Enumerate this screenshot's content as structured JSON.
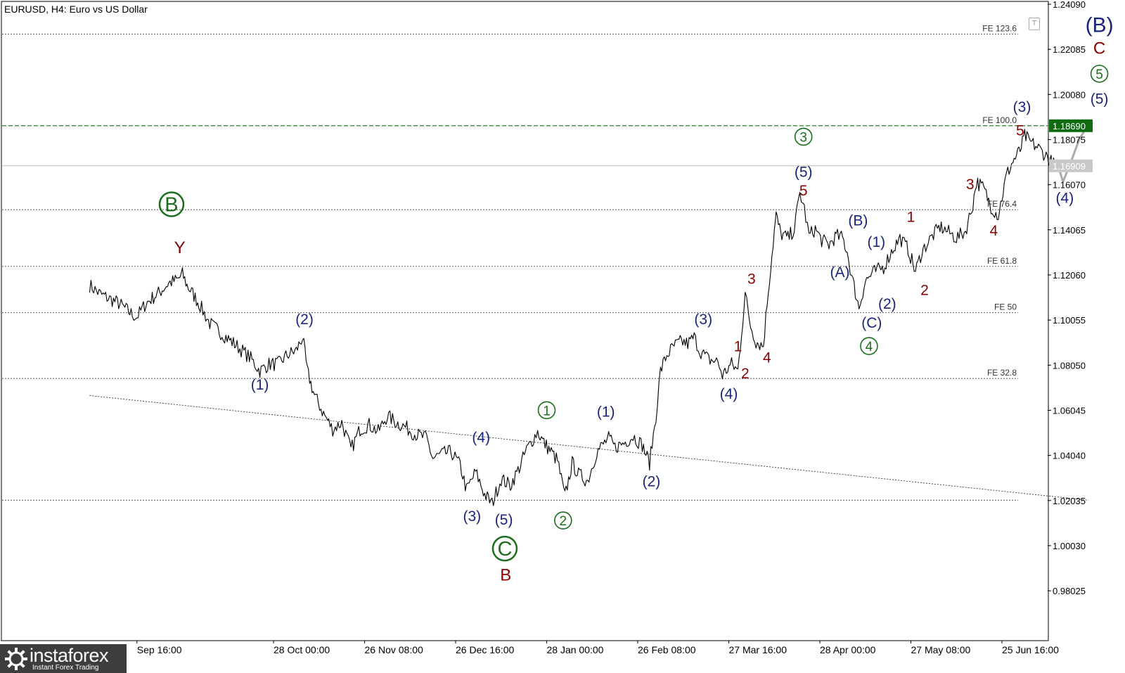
{
  "title": "EURUSD, H4:  Euro vs US Dollar",
  "tool_button": "T",
  "logo": {
    "name": "instaforex",
    "tagline": "Instant Forex Trading"
  },
  "colors": {
    "navy": "#1a237e",
    "maroon": "#8b0000",
    "green": "#1b6e1b",
    "dark_green": "#006400",
    "grey": "#aaaaaa"
  },
  "chart_data": {
    "type": "line",
    "symbol": "EURUSD",
    "timeframe": "H4",
    "ylim": [
      0.97,
      1.2409
    ],
    "y_ticks": [
      "1.24090",
      "1.22085",
      "1.20080",
      "1.18075",
      "1.16070",
      "1.14065",
      "1.12060",
      "1.10055",
      "1.08050",
      "1.06045",
      "1.04040",
      "1.02035",
      "1.00030",
      "0.98025"
    ],
    "x_ticks": [
      {
        "t": 0.5,
        "label": "Sep 16:00"
      },
      {
        "t": 2,
        "label": "28 Oct 00:00"
      },
      {
        "t": 3,
        "label": "26 Nov 08:00"
      },
      {
        "t": 4,
        "label": "26 Dec 16:00"
      },
      {
        "t": 5,
        "label": "28 Jan 00:00"
      },
      {
        "t": 6,
        "label": "26 Feb 08:00"
      },
      {
        "t": 7,
        "label": "27 Mar 16:00"
      },
      {
        "t": 8,
        "label": "28 Apr 00:00"
      },
      {
        "t": 9,
        "label": "27 May 08:00"
      },
      {
        "t": 10,
        "label": "25 Jun 16:00"
      }
    ],
    "price_path": [
      [
        -0.02,
        1.116
      ],
      [
        0.1,
        1.112
      ],
      [
        0.3,
        1.108
      ],
      [
        0.45,
        1.103
      ],
      [
        0.5,
        1.102
      ],
      [
        0.6,
        1.108
      ],
      [
        0.75,
        1.113
      ],
      [
        0.85,
        1.117
      ],
      [
        0.95,
        1.1185
      ],
      [
        1.0,
        1.121
      ],
      [
        1.05,
        1.116
      ],
      [
        1.1,
        1.113
      ],
      [
        1.18,
        1.108
      ],
      [
        1.3,
        1.099
      ],
      [
        1.45,
        1.094
      ],
      [
        1.6,
        1.089
      ],
      [
        1.75,
        1.0835
      ],
      [
        1.85,
        1.078
      ],
      [
        1.95,
        1.081
      ],
      [
        2.05,
        1.081
      ],
      [
        2.15,
        1.085
      ],
      [
        2.25,
        1.087
      ],
      [
        2.32,
        1.093
      ],
      [
        2.37,
        1.078
      ],
      [
        2.45,
        1.067
      ],
      [
        2.55,
        1.059
      ],
      [
        2.65,
        1.052
      ],
      [
        2.75,
        1.055
      ],
      [
        2.85,
        1.043
      ],
      [
        2.95,
        1.052
      ],
      [
        3.05,
        1.054
      ],
      [
        3.15,
        1.051
      ],
      [
        3.25,
        1.058
      ],
      [
        3.35,
        1.055
      ],
      [
        3.45,
        1.053
      ],
      [
        3.55,
        1.05
      ],
      [
        3.68,
        1.048
      ],
      [
        3.75,
        1.039
      ],
      [
        3.85,
        1.041
      ],
      [
        3.95,
        1.042
      ],
      [
        4.05,
        1.036
      ],
      [
        4.12,
        1.025
      ],
      [
        4.22,
        1.033
      ],
      [
        4.32,
        1.023
      ],
      [
        4.4,
        1.019
      ],
      [
        4.5,
        1.03
      ],
      [
        4.6,
        1.027
      ],
      [
        4.7,
        1.035
      ],
      [
        4.78,
        1.043
      ],
      [
        4.9,
        1.051
      ],
      [
        4.97,
        1.046
      ],
      [
        5.05,
        1.042
      ],
      [
        5.12,
        1.038
      ],
      [
        5.2,
        1.022
      ],
      [
        5.28,
        1.037
      ],
      [
        5.35,
        1.032
      ],
      [
        5.45,
        1.029
      ],
      [
        5.55,
        1.042
      ],
      [
        5.68,
        1.048
      ],
      [
        5.75,
        1.044
      ],
      [
        5.85,
        1.046
      ],
      [
        5.95,
        1.049
      ],
      [
        6.05,
        1.045
      ],
      [
        6.13,
        1.037
      ],
      [
        6.2,
        1.058
      ],
      [
        6.25,
        1.078
      ],
      [
        6.32,
        1.085
      ],
      [
        6.4,
        1.089
      ],
      [
        6.48,
        1.091
      ],
      [
        6.55,
        1.09
      ],
      [
        6.62,
        1.093
      ],
      [
        6.68,
        1.087
      ],
      [
        6.78,
        1.083
      ],
      [
        6.88,
        1.082
      ],
      [
        6.93,
        1.076
      ],
      [
        7.03,
        1.081
      ],
      [
        7.1,
        1.078
      ],
      [
        7.18,
        1.112
      ],
      [
        7.24,
        1.098
      ],
      [
        7.3,
        1.091
      ],
      [
        7.38,
        1.089
      ],
      [
        7.42,
        1.108
      ],
      [
        7.5,
        1.14
      ],
      [
        7.52,
        1.147
      ],
      [
        7.57,
        1.139
      ],
      [
        7.65,
        1.137
      ],
      [
        7.72,
        1.141
      ],
      [
        7.78,
        1.157
      ],
      [
        7.83,
        1.15
      ],
      [
        7.88,
        1.138
      ],
      [
        7.95,
        1.141
      ],
      [
        8.02,
        1.136
      ],
      [
        8.1,
        1.134
      ],
      [
        8.18,
        1.138
      ],
      [
        8.25,
        1.137
      ],
      [
        8.3,
        1.131
      ],
      [
        8.35,
        1.12
      ],
      [
        8.43,
        1.106
      ],
      [
        8.5,
        1.118
      ],
      [
        8.6,
        1.122
      ],
      [
        8.7,
        1.124
      ],
      [
        8.8,
        1.132
      ],
      [
        8.88,
        1.137
      ],
      [
        8.97,
        1.132
      ],
      [
        9.05,
        1.122
      ],
      [
        9.12,
        1.131
      ],
      [
        9.22,
        1.137
      ],
      [
        9.32,
        1.142
      ],
      [
        9.4,
        1.14
      ],
      [
        9.5,
        1.137
      ],
      [
        9.6,
        1.14
      ],
      [
        9.68,
        1.152
      ],
      [
        9.72,
        1.162
      ],
      [
        9.8,
        1.159
      ],
      [
        9.88,
        1.151
      ],
      [
        9.96,
        1.147
      ],
      [
        10.0,
        1.155
      ],
      [
        10.05,
        1.165
      ],
      [
        10.12,
        1.171
      ],
      [
        10.2,
        1.176
      ],
      [
        10.25,
        1.1825
      ],
      [
        10.3,
        1.18
      ],
      [
        10.4,
        1.177
      ],
      [
        10.5,
        1.173
      ],
      [
        10.58,
        1.169
      ],
      [
        10.63,
        1.1675
      ]
    ],
    "projection": [
      [
        10.63,
        1.1675
      ],
      [
        10.67,
        1.162
      ],
      [
        10.75,
        1.17
      ],
      [
        10.85,
        1.181
      ],
      [
        10.94,
        1.1868
      ]
    ],
    "current_price": "1.16909",
    "current_price_value": 1.16909,
    "target_price": "1.18690",
    "target_price_value": 1.1869,
    "horizontal_levels": [
      {
        "y": 1.2276,
        "label": "FE 123.6",
        "style": "dotted"
      },
      {
        "y": 1.1869,
        "label": "FE 100.0",
        "style": "dashed-green"
      },
      {
        "y": 1.1496,
        "label": "FE 76.4",
        "style": "dotted"
      },
      {
        "y": 1.1244,
        "label": "FE 61.8",
        "style": "dotted"
      },
      {
        "y": 1.1038,
        "label": "FE 50",
        "style": "dotted"
      },
      {
        "y": 1.0746,
        "label": "FE 32.8",
        "style": "dotted"
      },
      {
        "y": 1.0205,
        "label": "",
        "style": "dotted"
      }
    ],
    "trendline": [
      [
        -0.02,
        1.067
      ],
      [
        10.95,
        1.0205
      ]
    ],
    "wave_labels": [
      {
        "t": 0.88,
        "y": 1.152,
        "text": "B",
        "color": "green",
        "circled": true
      },
      {
        "t": 0.97,
        "y": 1.133,
        "text": "Y",
        "color": "maroon"
      },
      {
        "t": 1.85,
        "y": 1.072,
        "text": "(1)",
        "color": "navy"
      },
      {
        "t": 2.34,
        "y": 1.101,
        "text": "(2)",
        "color": "navy"
      },
      {
        "t": 4.28,
        "y": 1.0485,
        "text": "(4)",
        "color": "navy"
      },
      {
        "t": 4.18,
        "y": 1.0135,
        "text": "(3)",
        "color": "navy"
      },
      {
        "t": 4.53,
        "y": 1.012,
        "text": "(5)",
        "color": "navy"
      },
      {
        "t": 4.54,
        "y": 0.999,
        "text": "C",
        "color": "green",
        "circled": true
      },
      {
        "t": 4.55,
        "y": 0.9875,
        "text": "B",
        "color": "maroon"
      },
      {
        "t": 5.0,
        "y": 1.0605,
        "text": "1",
        "color": "green",
        "circled": true
      },
      {
        "t": 5.18,
        "y": 1.0115,
        "text": "2",
        "color": "green",
        "circled": true
      },
      {
        "t": 5.65,
        "y": 1.06,
        "text": "(1)",
        "color": "navy"
      },
      {
        "t": 6.15,
        "y": 1.029,
        "text": "(2)",
        "color": "navy"
      },
      {
        "t": 6.72,
        "y": 1.101,
        "text": "(3)",
        "color": "navy"
      },
      {
        "t": 7.1,
        "y": 1.089,
        "text": "1",
        "color": "maroon"
      },
      {
        "t": 7.0,
        "y": 1.068,
        "text": "(4)",
        "color": "navy"
      },
      {
        "t": 7.18,
        "y": 1.077,
        "text": "2",
        "color": "maroon"
      },
      {
        "t": 7.25,
        "y": 1.119,
        "text": "3",
        "color": "maroon"
      },
      {
        "t": 7.42,
        "y": 1.084,
        "text": "4",
        "color": "maroon"
      },
      {
        "t": 7.82,
        "y": 1.182,
        "text": "3",
        "color": "green",
        "circled": true
      },
      {
        "t": 7.82,
        "y": 1.1665,
        "text": "(5)",
        "color": "navy"
      },
      {
        "t": 7.82,
        "y": 1.1582,
        "text": "5",
        "color": "maroon"
      },
      {
        "t": 8.42,
        "y": 1.145,
        "text": "(B)",
        "color": "navy"
      },
      {
        "t": 8.22,
        "y": 1.122,
        "text": "(A)",
        "color": "navy"
      },
      {
        "t": 8.62,
        "y": 1.1355,
        "text": "(1)",
        "color": "navy"
      },
      {
        "t": 8.74,
        "y": 1.108,
        "text": "(2)",
        "color": "navy"
      },
      {
        "t": 8.57,
        "y": 1.0995,
        "text": "(C)",
        "color": "navy"
      },
      {
        "t": 8.54,
        "y": 1.089,
        "text": "4",
        "color": "green",
        "circled": true
      },
      {
        "t": 9.0,
        "y": 1.1465,
        "text": "1",
        "color": "maroon"
      },
      {
        "t": 9.15,
        "y": 1.114,
        "text": "2",
        "color": "maroon"
      },
      {
        "t": 9.65,
        "y": 1.161,
        "text": "3",
        "color": "maroon"
      },
      {
        "t": 9.91,
        "y": 1.1405,
        "text": "4",
        "color": "maroon"
      },
      {
        "t": 10.22,
        "y": 1.1955,
        "text": "(3)",
        "color": "navy"
      },
      {
        "t": 10.2,
        "y": 1.185,
        "text": "5",
        "color": "maroon"
      },
      {
        "t": 10.69,
        "y": 1.155,
        "text": "(4)",
        "color": "navy"
      },
      {
        "t": 11.07,
        "y": 1.199,
        "text": "(5)",
        "color": "navy"
      },
      {
        "t": 11.07,
        "y": 1.21,
        "text": "5",
        "color": "green",
        "circled": true
      },
      {
        "t": 11.07,
        "y": 1.2215,
        "text": "C",
        "color": "maroon"
      },
      {
        "t": 11.07,
        "y": 1.232,
        "text": "(B)",
        "color": "navy"
      }
    ]
  }
}
